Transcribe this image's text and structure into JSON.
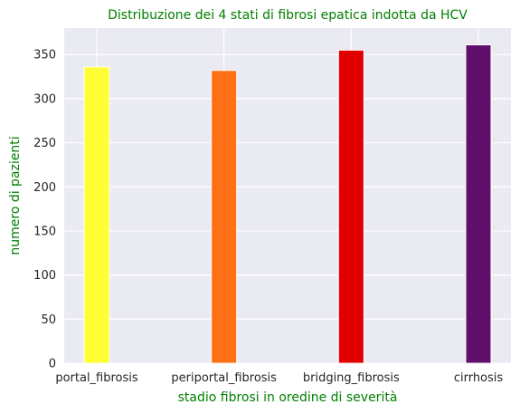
{
  "chart_data": {
    "type": "bar",
    "title": "Distribuzione dei 4 stati di fibrosi epatica indotta da HCV",
    "xlabel": "stadio fibrosi in oredine di severità",
    "ylabel": "numero di pazienti",
    "categories": [
      "portal_fibrosis",
      "periportal_fibrosis",
      "bridging_fibrosis",
      "cirrhosis"
    ],
    "values": [
      336,
      332,
      355,
      361
    ],
    "bar_colors": [
      "#ffff33",
      "#ff7014",
      "#e00000",
      "#610f6c"
    ],
    "ylim": [
      0,
      380
    ],
    "yticks": [
      0,
      50,
      100,
      150,
      200,
      250,
      300,
      350
    ],
    "grid": true,
    "label_color": "#008000",
    "background_color": "#eaeaf2"
  }
}
